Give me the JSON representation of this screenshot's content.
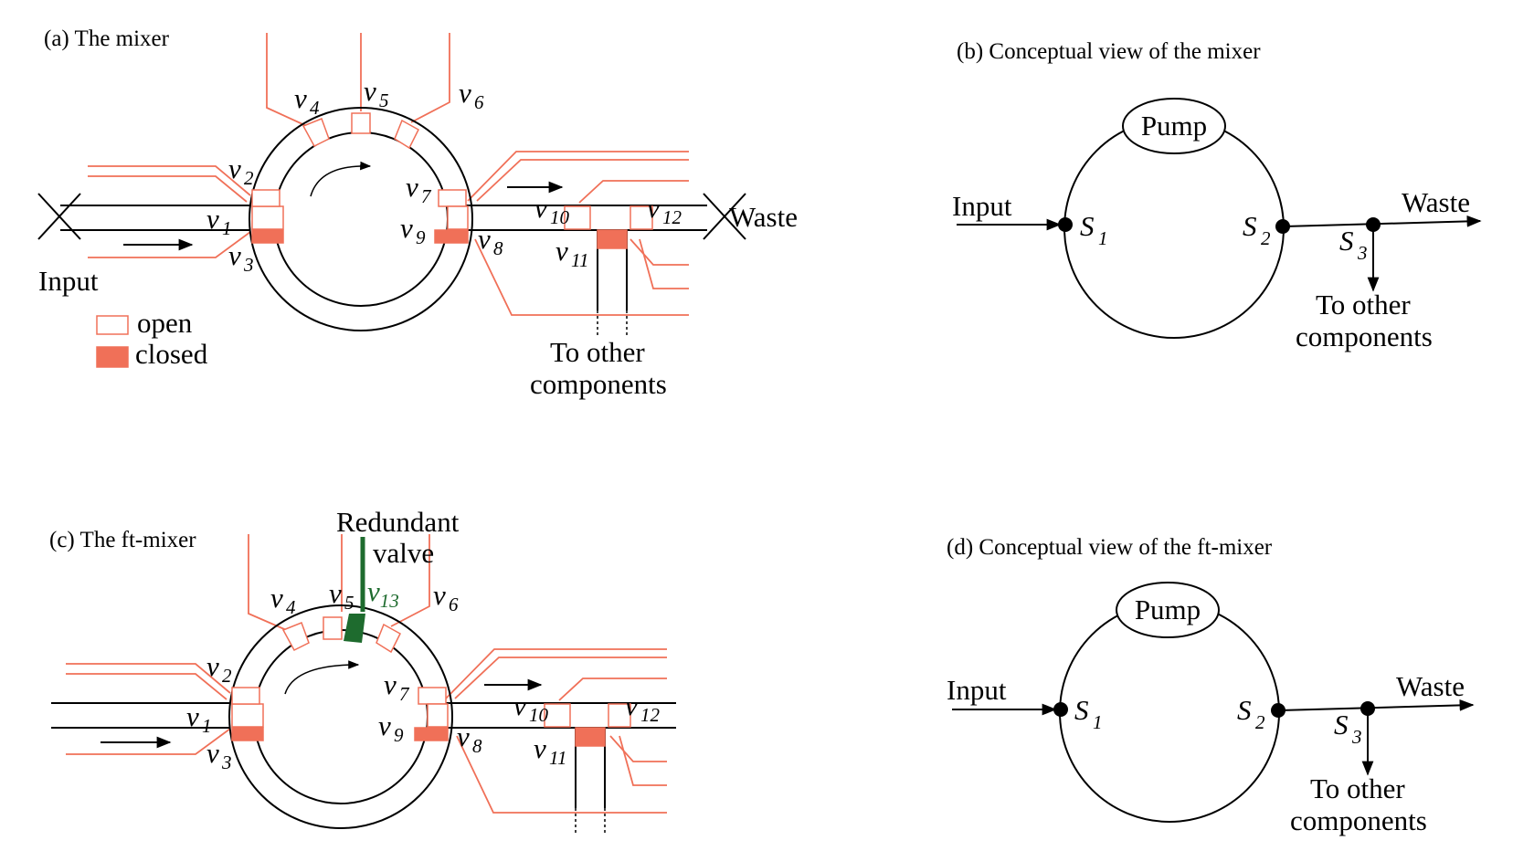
{
  "panel_a": {
    "caption": "(a) The mixer",
    "input_label": "Input",
    "waste_label": "Waste",
    "legend_open": "open",
    "legend_closed": "closed",
    "to_other_line1": "To other",
    "to_other_line2": "components",
    "valves": [
      "v1",
      "v2",
      "v3",
      "v4",
      "v5",
      "v6",
      "v7",
      "v8",
      "v9",
      "v10",
      "v11",
      "v12"
    ]
  },
  "panel_b": {
    "caption": "(b) Conceptual view of the mixer",
    "pump_label": "Pump",
    "input_label": "Input",
    "waste_label": "Waste",
    "s1": "S",
    "s1_sub": "1",
    "s2": "S",
    "s2_sub": "2",
    "s3": "S",
    "s3_sub": "3",
    "to_other_line1": "To other",
    "to_other_line2": "components"
  },
  "panel_c": {
    "caption": "(c) The ft-mixer",
    "redundant_line1": "Redundant",
    "redundant_line2": "valve",
    "v13": "v13",
    "valves": [
      "v1",
      "v2",
      "v3",
      "v4",
      "v5",
      "v6",
      "v7",
      "v8",
      "v9",
      "v10",
      "v11",
      "v12"
    ]
  },
  "panel_d": {
    "caption": "(d) Conceptual view of the ft-mixer",
    "pump_label": "Pump",
    "input_label": "Input",
    "waste_label": "Waste",
    "s1": "S",
    "s1_sub": "1",
    "s2": "S",
    "s2_sub": "2",
    "s3": "S",
    "s3_sub": "3",
    "to_other_line1": "To other",
    "to_other_line2": "components"
  },
  "colors": {
    "valve": "#f07058",
    "redundant": "#1e6b2e"
  }
}
